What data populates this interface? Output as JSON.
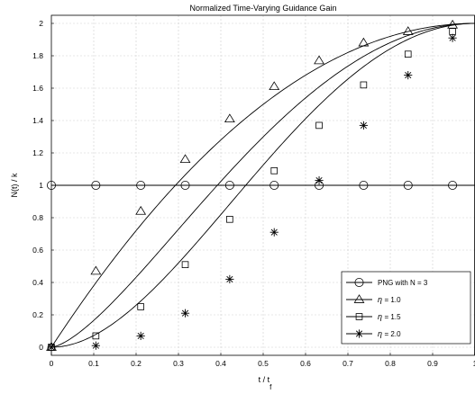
{
  "chart_data": {
    "type": "line",
    "title": "Normalized Time-Varying Guidance Gain",
    "xlabel_main": "t / t",
    "xlabel_sub": "f",
    "ylabel": "N(t) / k",
    "xlim": [
      0,
      1
    ],
    "ylim": [
      -0.05,
      2.05
    ],
    "xticks": [
      "0",
      "0.1",
      "0.2",
      "0.3",
      "0.4",
      "0.5",
      "0.6",
      "0.7",
      "0.8",
      "0.9",
      "1"
    ],
    "yticks": [
      "0",
      "0.2",
      "0.4",
      "0.6",
      "0.8",
      "1",
      "1.2",
      "1.4",
      "1.6",
      "1.8",
      "2"
    ],
    "grid": true,
    "legend_position": "bottom-right",
    "marker_x": [
      0,
      0.105,
      0.211,
      0.316,
      0.421,
      0.526,
      0.632,
      0.737,
      0.842,
      0.947
    ],
    "series": [
      {
        "name": "PNG with N = 3",
        "legend_text": "PNG with N = 3",
        "marker": "circle",
        "eta": 0,
        "values": [
          1,
          1,
          1,
          1,
          1,
          1,
          1,
          1,
          1,
          1
        ]
      },
      {
        "name": "η = 1.0",
        "legend_text": "= 1.0",
        "marker": "triangle",
        "eta": 1.0,
        "values": [
          0,
          0.47,
          0.84,
          1.16,
          1.41,
          1.61,
          1.77,
          1.88,
          1.95,
          1.99
        ]
      },
      {
        "name": "η = 1.5",
        "legend_text": "= 1.5",
        "marker": "square",
        "eta": 1.5,
        "values": [
          0,
          0.07,
          0.25,
          0.51,
          0.79,
          1.09,
          1.37,
          1.62,
          1.81,
          1.95
        ]
      },
      {
        "name": "η = 2.0",
        "legend_text": "= 2.0",
        "marker": "star",
        "eta": 2.0,
        "values": [
          0,
          0.01,
          0.07,
          0.21,
          0.42,
          0.71,
          1.03,
          1.37,
          1.68,
          1.91
        ]
      }
    ]
  }
}
